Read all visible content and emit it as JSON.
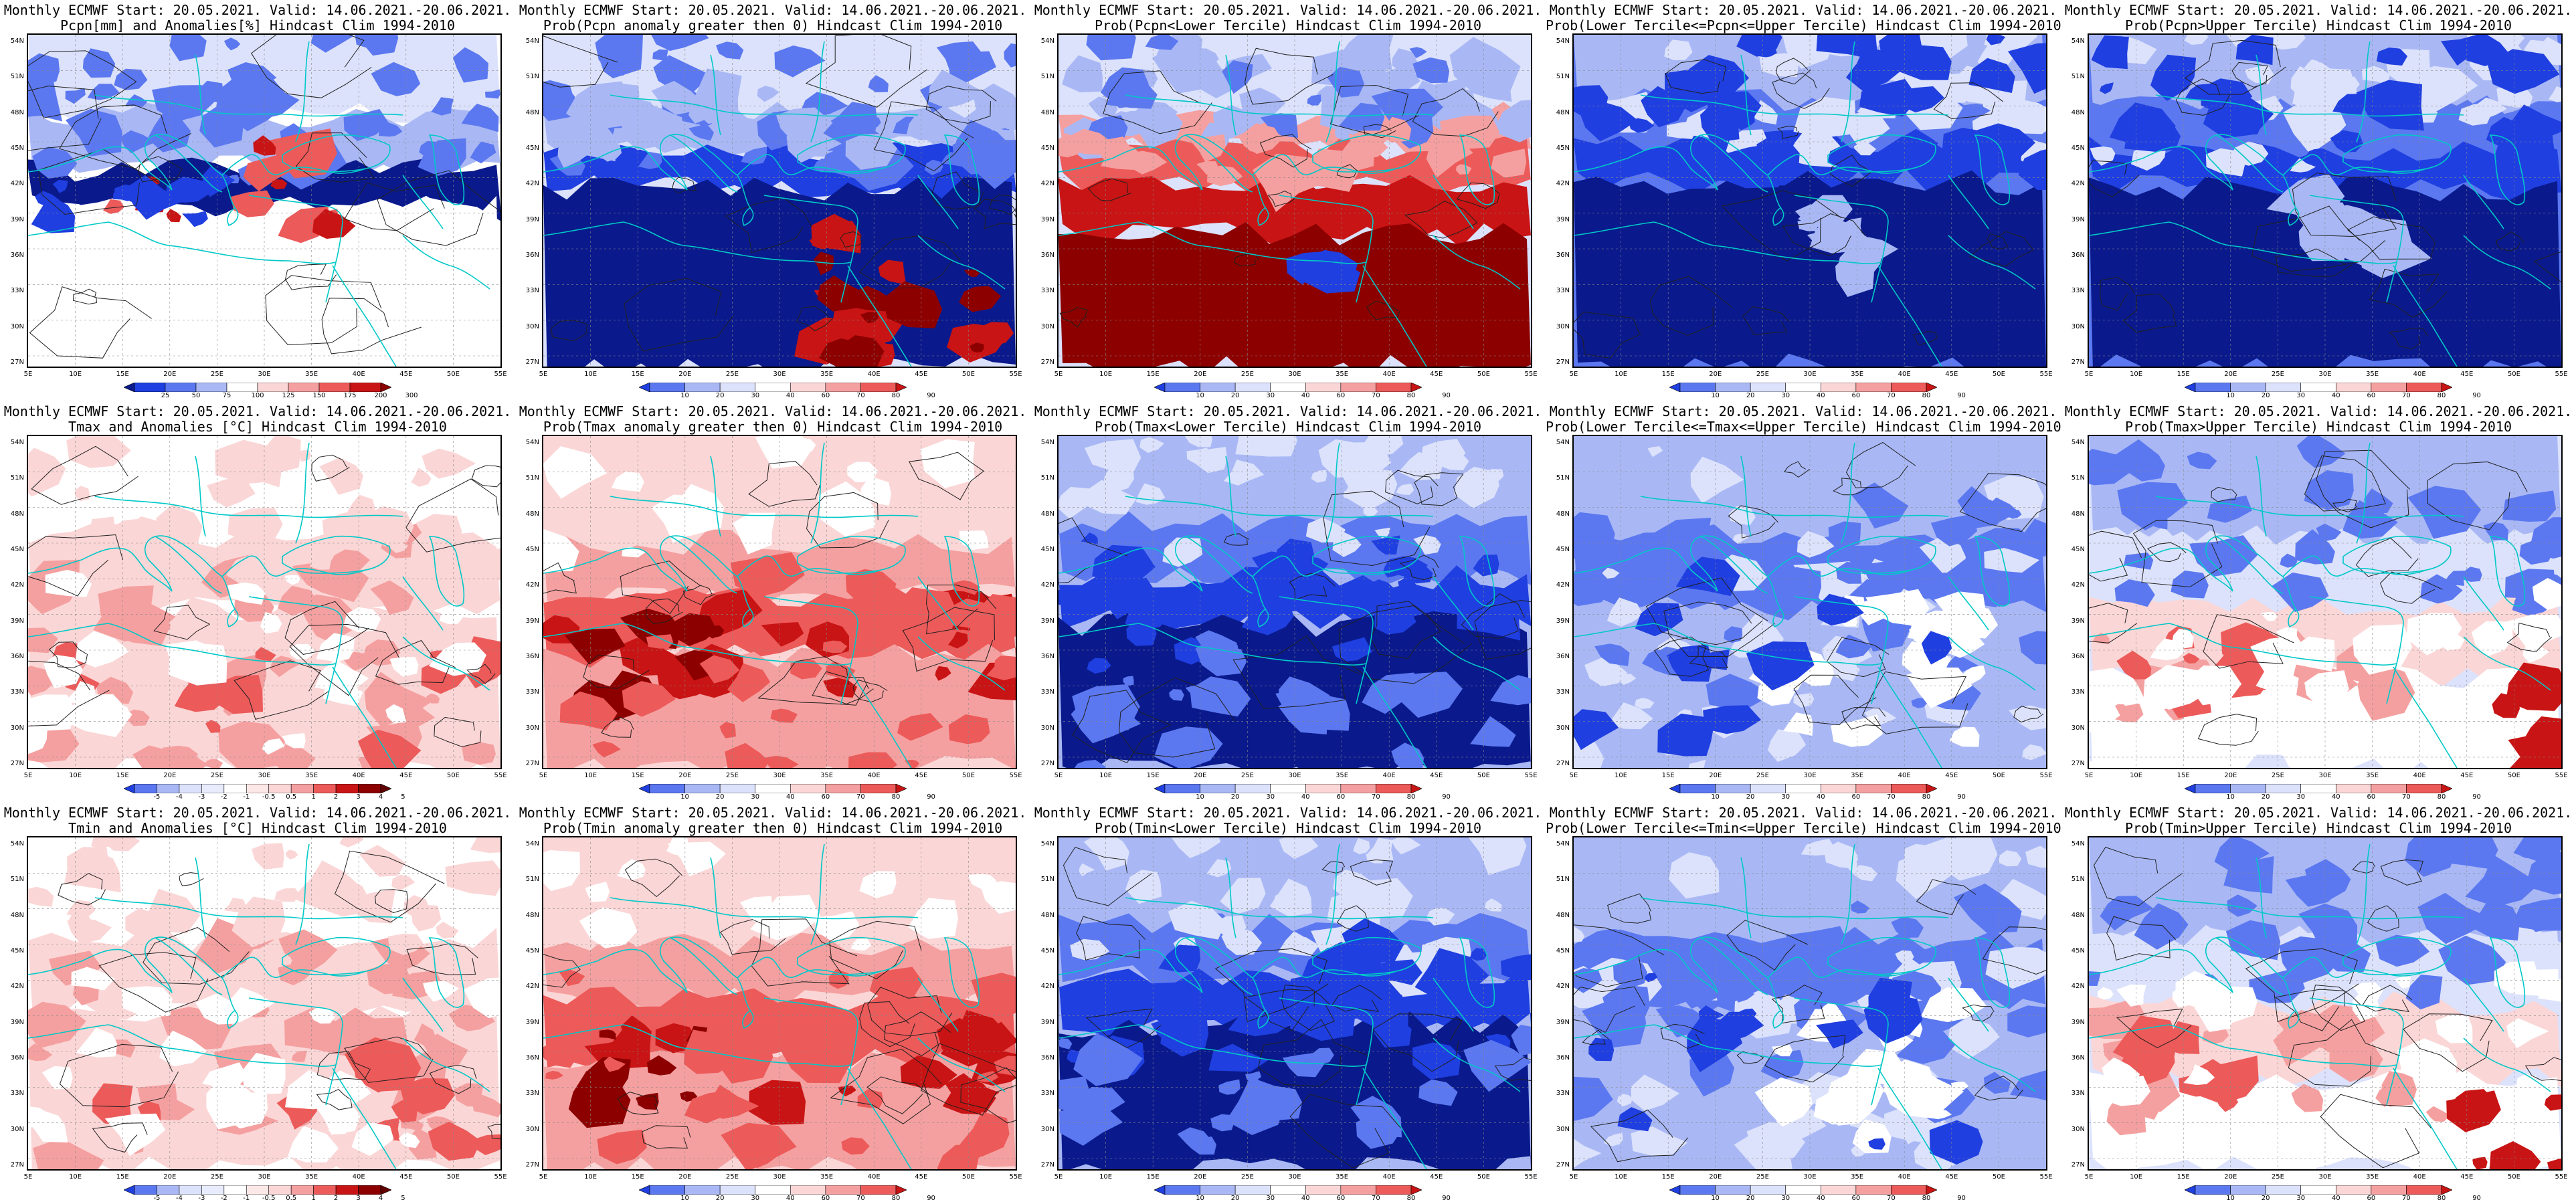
{
  "colors": {
    "ocean_deep": "#0a1a8c",
    "blue_dark": "#1f3fe0",
    "blue_mid": "#5b78f0",
    "blue_light": "#a9b8f5",
    "blue_pale": "#dce2fb",
    "red_pale": "#fbd6d6",
    "red_light": "#f5a0a0",
    "red_mid": "#ec5a5a",
    "red_dark": "#c81414",
    "red_deep": "#8c0000",
    "coast": "#00c8c8",
    "contour": "#202020"
  },
  "lat_labels": [
    "54N",
    "51N",
    "48N",
    "45N",
    "42N",
    "39N",
    "36N",
    "33N",
    "30N",
    "27N"
  ],
  "lon_labels": [
    "5E",
    "10E",
    "15E",
    "20E",
    "25E",
    "30E",
    "35E",
    "40E",
    "45E",
    "50E",
    "55E"
  ],
  "colorbars": {
    "prob": [
      "10",
      "20",
      "30",
      "40",
      "60",
      "70",
      "80",
      "90"
    ],
    "pcpn": [
      "25",
      "50",
      "75",
      "100",
      "125",
      "150",
      "175",
      "200",
      "300"
    ],
    "temp": [
      "-5",
      "-4",
      "-3",
      "-2",
      "-1",
      "-0.5",
      "0.5",
      "1",
      "2",
      "3",
      "4",
      "5"
    ]
  },
  "panels": [
    {
      "id": "p1",
      "line1": "Monthly ECMWF Start: 20.05.2021. Valid: 14.06.2021.-20.06.2021.",
      "line2": "Pcpn[mm] and Anomalies[%] Hindcast Clim 1994-2010",
      "scheme": "pcpn_anom",
      "cbar": "pcpn"
    },
    {
      "id": "p2",
      "line1": "Monthly ECMWF Start: 20.05.2021. Valid: 14.06.2021.-20.06.2021.",
      "line2": "Prob(Pcpn anomaly greater then 0) Hindcast Clim 1994-2010",
      "scheme": "pcpn_pos",
      "cbar": "prob"
    },
    {
      "id": "p3",
      "line1": "Monthly ECMWF Start: 20.05.2021. Valid: 14.06.2021.-20.06.2021.",
      "line2": "Prob(Pcpn<Lower Tercile) Hindcast Clim 1994-2010",
      "scheme": "pcpn_low",
      "cbar": "prob"
    },
    {
      "id": "p4",
      "line1": "Monthly ECMWF Start: 20.05.2021. Valid: 14.06.2021.-20.06.2021.",
      "line2": "Prob(Lower Tercile<=Pcpn<=Upper Tercile) Hindcast Clim 1994-2010",
      "scheme": "pcpn_mid",
      "cbar": "prob"
    },
    {
      "id": "p5",
      "line1": "Monthly ECMWF Start: 20.05.2021. Valid: 14.06.2021.-20.06.2021.",
      "line2": "Prob(Pcpn>Upper Tercile) Hindcast Clim 1994-2010",
      "scheme": "pcpn_up",
      "cbar": "prob"
    },
    {
      "id": "p6",
      "line1": "Monthly ECMWF Start: 20.05.2021. Valid: 14.06.2021.-20.06.2021.",
      "line2": "Tmax and Anomalies [°C] Hindcast Clim 1994-2010",
      "scheme": "warm_anom",
      "cbar": "temp"
    },
    {
      "id": "p7",
      "line1": "Monthly ECMWF Start: 20.05.2021. Valid: 14.06.2021.-20.06.2021.",
      "line2": "Prob(Tmax anomaly greater then 0) Hindcast Clim 1994-2010",
      "scheme": "warm_strong",
      "cbar": "prob"
    },
    {
      "id": "p8",
      "line1": "Monthly ECMWF Start: 20.05.2021. Valid: 14.06.2021.-20.06.2021.",
      "line2": "Prob(Tmax<Lower Tercile) Hindcast Clim 1994-2010",
      "scheme": "cold_strong",
      "cbar": "prob"
    },
    {
      "id": "p9",
      "line1": "Monthly ECMWF Start: 20.05.2021. Valid: 14.06.2021.-20.06.2021.",
      "line2": "Prob(Lower Tercile<=Tmax<=Upper Tercile) Hindcast Clim 1994-2010",
      "scheme": "mid_blue",
      "cbar": "prob"
    },
    {
      "id": "p10",
      "line1": "Monthly ECMWF Start: 20.05.2021. Valid: 14.06.2021.-20.06.2021.",
      "line2": "Prob(Tmax>Upper Tercile) Hindcast Clim 1994-2010",
      "scheme": "upper_mixed",
      "cbar": "prob"
    },
    {
      "id": "p11",
      "line1": "Monthly ECMWF Start: 20.05.2021. Valid: 14.06.2021.-20.06.2021.",
      "line2": "Tmin and Anomalies [°C] Hindcast Clim 1994-2010",
      "scheme": "warm_anom",
      "cbar": "temp"
    },
    {
      "id": "p12",
      "line1": "Monthly ECMWF Start: 20.05.2021. Valid: 14.06.2021.-20.06.2021.",
      "line2": "Prob(Tmin anomaly greater then 0) Hindcast Clim 1994-2010",
      "scheme": "warm_strong",
      "cbar": "prob"
    },
    {
      "id": "p13",
      "line1": "Monthly ECMWF Start: 20.05.2021. Valid: 14.06.2021.-20.06.2021.",
      "line2": "Prob(Tmin<Lower Tercile) Hindcast Clim 1994-2010",
      "scheme": "cold_strong",
      "cbar": "prob"
    },
    {
      "id": "p14",
      "line1": "Monthly ECMWF Start: 20.05.2021. Valid: 14.06.2021.-20.06.2021.",
      "line2": "Prob(Lower Tercile<=Tmin<=Upper Tercile) Hindcast Clim 1994-2010",
      "scheme": "mid_blue",
      "cbar": "prob"
    },
    {
      "id": "p15",
      "line1": "Monthly ECMWF Start: 20.05.2021. Valid: 14.06.2021.-20.06.2021.",
      "line2": "Prob(Tmin>Upper Tercile) Hindcast Clim 1994-2010",
      "scheme": "upper_mixed",
      "cbar": "prob"
    }
  ]
}
